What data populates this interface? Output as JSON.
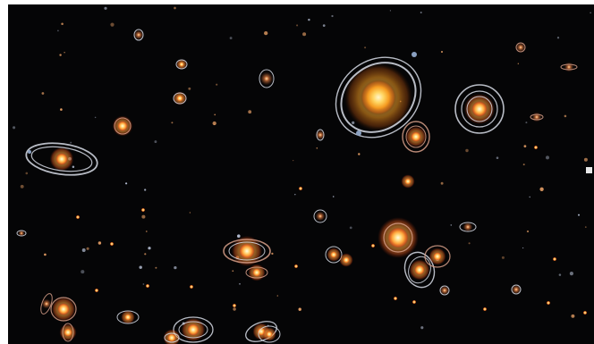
{
  "image": {
    "subject": "orbital-systems-scatter",
    "background_color": "#050506",
    "border_color": "#ffffff",
    "palette": {
      "star_core": "#fff6d8",
      "star_mid": "#ffb347",
      "star_edge": "#e0501c",
      "orbit": "#d8dde8",
      "orbit_warm": "#d8a08a",
      "planet": "#8aa0c0"
    }
  }
}
